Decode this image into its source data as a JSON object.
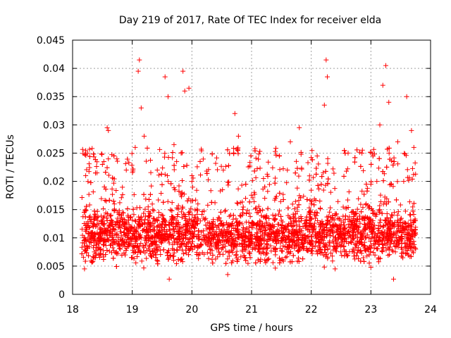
{
  "chart_data": {
    "type": "scatter",
    "title": "Day 219 of 2017, Rate Of TEC Index for receiver elda",
    "xlabel": "GPS time / hours",
    "ylabel": "ROTI / TECUs",
    "xlim": [
      18,
      24
    ],
    "ylim": [
      0,
      0.045
    ],
    "xticks": [
      18,
      19,
      20,
      21,
      22,
      23,
      24
    ],
    "yticks": [
      0,
      0.005,
      0.01,
      0.015,
      0.02,
      0.025,
      0.03,
      0.035,
      0.04,
      0.045
    ],
    "xtick_labels": [
      "18",
      "19",
      "20",
      "21",
      "22",
      "23",
      "24"
    ],
    "ytick_labels": [
      "0",
      "0.005",
      "0.01",
      "0.015",
      "0.02",
      "0.025",
      "0.03",
      "0.035",
      "0.04",
      "0.045"
    ],
    "grid": true,
    "marker": "plus",
    "color": "#ff0000",
    "series": [
      {
        "name": "ROTI",
        "note": "dense band ~0.005–0.015 TECU/s across 18.15–23.75 h; representative points below",
        "points": [
          [
            18.2,
            0.0045
          ],
          [
            18.22,
            0.021
          ],
          [
            18.25,
            0.025
          ],
          [
            18.35,
            0.012
          ],
          [
            18.45,
            0.0095
          ],
          [
            18.5,
            0.023
          ],
          [
            18.58,
            0.0295
          ],
          [
            18.6,
            0.029
          ],
          [
            18.7,
            0.016
          ],
          [
            18.8,
            0.008
          ],
          [
            18.9,
            0.022
          ],
          [
            19.0,
            0.0065
          ],
          [
            19.05,
            0.026
          ],
          [
            19.1,
            0.0395
          ],
          [
            19.12,
            0.0415
          ],
          [
            19.15,
            0.033
          ],
          [
            19.2,
            0.028
          ],
          [
            19.3,
            0.012
          ],
          [
            19.42,
            0.022
          ],
          [
            19.55,
            0.0385
          ],
          [
            19.6,
            0.035
          ],
          [
            19.62,
            0.0027
          ],
          [
            19.7,
            0.0265
          ],
          [
            19.85,
            0.0395
          ],
          [
            19.88,
            0.036
          ],
          [
            19.95,
            0.0365
          ],
          [
            20.0,
            0.021
          ],
          [
            20.1,
            0.016
          ],
          [
            20.3,
            0.011
          ],
          [
            20.5,
            0.008
          ],
          [
            20.6,
            0.0035
          ],
          [
            20.72,
            0.032
          ],
          [
            20.78,
            0.028
          ],
          [
            20.9,
            0.017
          ],
          [
            21.0,
            0.009
          ],
          [
            21.2,
            0.0205
          ],
          [
            21.4,
            0.007
          ],
          [
            21.6,
            0.022
          ],
          [
            21.65,
            0.027
          ],
          [
            21.8,
            0.0295
          ],
          [
            21.9,
            0.012
          ],
          [
            22.0,
            0.016
          ],
          [
            22.1,
            0.0245
          ],
          [
            22.22,
            0.0335
          ],
          [
            22.25,
            0.0415
          ],
          [
            22.27,
            0.0385
          ],
          [
            22.4,
            0.0045
          ],
          [
            22.5,
            0.013
          ],
          [
            22.7,
            0.008
          ],
          [
            22.85,
            0.025
          ],
          [
            23.0,
            0.0195
          ],
          [
            23.15,
            0.03
          ],
          [
            23.2,
            0.037
          ],
          [
            23.25,
            0.0405
          ],
          [
            23.3,
            0.034
          ],
          [
            23.38,
            0.0027
          ],
          [
            23.45,
            0.027
          ],
          [
            23.55,
            0.02
          ],
          [
            23.6,
            0.035
          ],
          [
            23.68,
            0.029
          ],
          [
            23.72,
            0.026
          ],
          [
            23.75,
            0.008
          ]
        ]
      }
    ]
  }
}
